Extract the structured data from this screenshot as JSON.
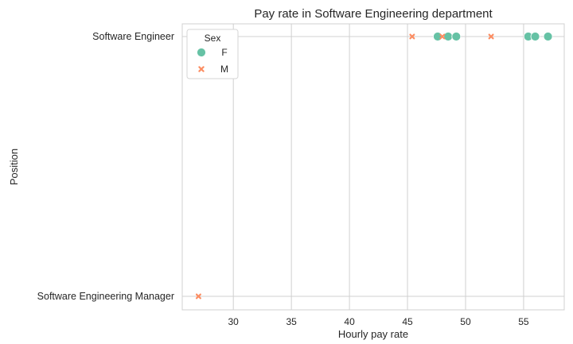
{
  "chart_data": {
    "type": "scatter",
    "title": "Pay rate in Software Engineering department",
    "xlabel": "Hourly pay rate",
    "ylabel": "Position",
    "xlim": [
      25.6,
      58.5
    ],
    "x_ticks": [
      30,
      35,
      40,
      45,
      50,
      55
    ],
    "categories": [
      "Software Engineer",
      "Software Engineering Manager"
    ],
    "grid": true,
    "legend": {
      "title": "Sex",
      "placement": "top-left"
    },
    "series": [
      {
        "name": "F",
        "marker": "circle",
        "color": "#66c2a5",
        "points": [
          {
            "x": 47.6,
            "y": "Software Engineer"
          },
          {
            "x": 48.5,
            "y": "Software Engineer"
          },
          {
            "x": 49.2,
            "y": "Software Engineer"
          },
          {
            "x": 55.4,
            "y": "Software Engineer"
          },
          {
            "x": 56.0,
            "y": "Software Engineer"
          },
          {
            "x": 57.1,
            "y": "Software Engineer"
          }
        ]
      },
      {
        "name": "M",
        "marker": "x",
        "color": "#fc8d62",
        "points": [
          {
            "x": 45.4,
            "y": "Software Engineer"
          },
          {
            "x": 48.0,
            "y": "Software Engineer"
          },
          {
            "x": 52.2,
            "y": "Software Engineer"
          },
          {
            "x": 27.0,
            "y": "Software Engineering Manager"
          }
        ]
      }
    ]
  }
}
